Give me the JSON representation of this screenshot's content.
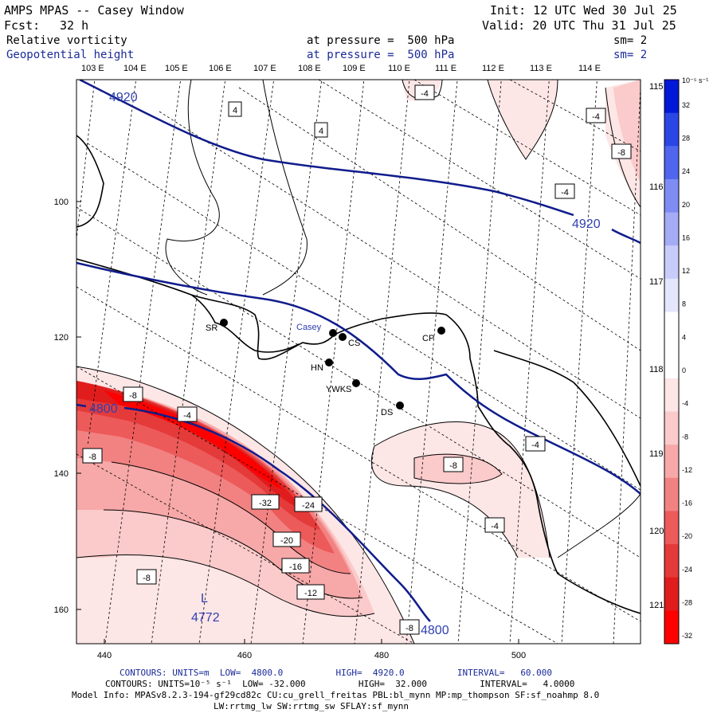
{
  "header": {
    "title": "AMPS MPAS -- Casey Window",
    "init": "Init: 12 UTC Wed 30 Jul 25",
    "fcst_label": "Fcst:",
    "fcst_value": "32 h",
    "valid": "Valid: 20 UTC Thu 31 Jul 25",
    "field1_name": "Relative vorticity",
    "field1_level": "at pressure =  500 hPa",
    "field1_sm": "sm= 2",
    "field2_name": "Geopotential height",
    "field2_level": "at pressure =  500 hPa",
    "field2_sm": "sm= 2"
  },
  "axes": {
    "top_lon_labels": [
      "103 E",
      "104 E",
      "105 E",
      "106 E",
      "107 E",
      "108 E",
      "109 E",
      "110 E",
      "111 E",
      "112 E",
      "113 E",
      "114 E"
    ],
    "right_lon_labels": [
      "115 E",
      "116 E",
      "117 E",
      "118 E",
      "119 E",
      "120 E",
      "121 E"
    ],
    "left_y_labels": [
      "100",
      "120",
      "140",
      "160"
    ],
    "bottom_x_labels": [
      "440",
      "460",
      "480",
      "500"
    ]
  },
  "colorbar": {
    "units": "10⁻⁵ s⁻¹",
    "labels": [
      "32",
      "28",
      "24",
      "20",
      "16",
      "12",
      "8",
      "4",
      "0",
      "-4",
      "-8",
      "-12",
      "-16",
      "-20",
      "-24",
      "-28",
      "-32"
    ],
    "colors": [
      "#0018d8",
      "#2a46e4",
      "#5066ee",
      "#7e8cf4",
      "#a4acf6",
      "#c8ccfa",
      "#e4e6fc",
      "#ffffff",
      "#ffffff",
      "#fde6e6",
      "#fbcaca",
      "#f7a8a8",
      "#f28282",
      "#ec5a5a",
      "#e53a3a",
      "#e01c1c",
      "#ff0000"
    ]
  },
  "stations": [
    {
      "name": "SR"
    },
    {
      "name": "Casey"
    },
    {
      "name": "CS"
    },
    {
      "name": "CP"
    },
    {
      "name": "HN"
    },
    {
      "name": "YWKS"
    },
    {
      "name": "DS"
    }
  ],
  "height_contours": {
    "labels": [
      "4920",
      "4920",
      "4800",
      "4800"
    ],
    "low_label": "L",
    "low_value": "4772",
    "color": "#101c8c"
  },
  "vorticity_labels": [
    "-4",
    "4",
    "4",
    "-4",
    "-8",
    "-4",
    "-8",
    "-4",
    "-8",
    "-24",
    "-32",
    "-20",
    "-16",
    "-12",
    "-8",
    "-8",
    "-4",
    "-4",
    "-8"
  ],
  "footer": {
    "line1": "CONTOURS: UNITS=m  LOW=  4800.0          HIGH=  4920.0          INTERVAL=   60.000",
    "line2": "CONTOURS: UNITS=10⁻⁵ s⁻¹  LOW= -32.000          HIGH=  32.000          INTERVAL=   4.0000",
    "line3": "Model Info: MPASv8.2.3-194-gf29cd82c CU:cu_grell_freitas PBL:bl_mynn MP:mp_thompson SF:sf_noahmp 8.0",
    "line4": "LW:rrtmg_lw SW:rrtmg_sw SFLAY:sf_mynn"
  },
  "colors": {
    "vort_strong": "#ff0000",
    "vort_weak": "#fde6e6",
    "height_line": "#101c8c"
  }
}
